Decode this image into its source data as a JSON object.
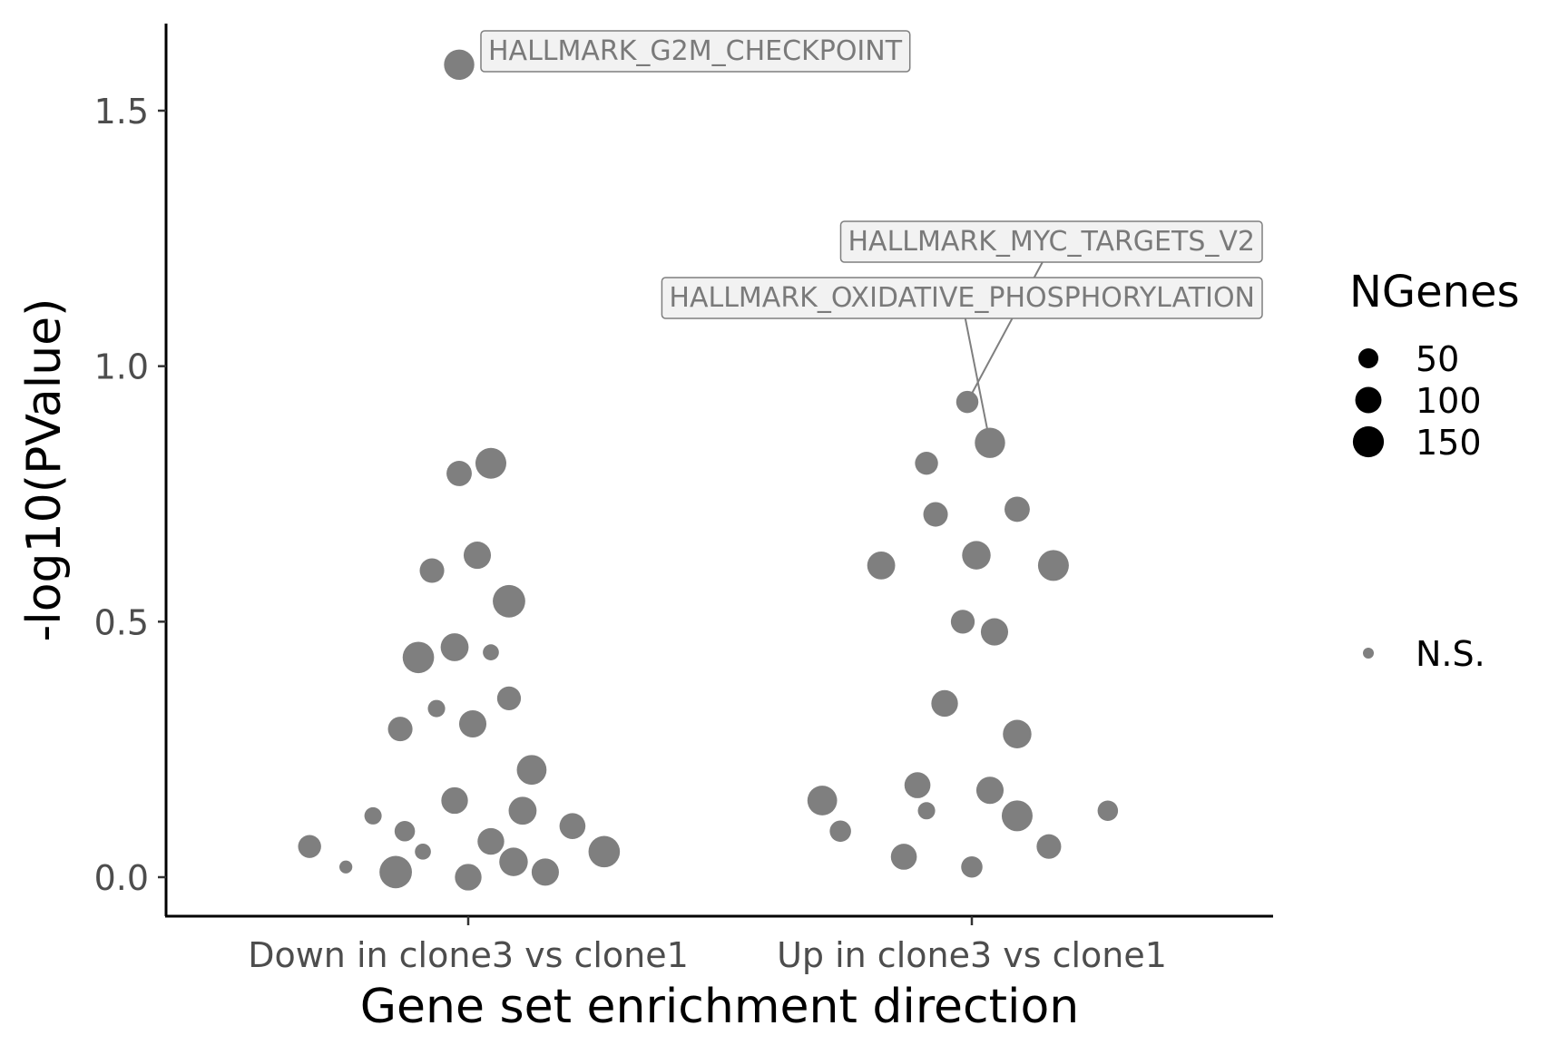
{
  "chart_data": {
    "type": "scatter",
    "xlabel": "Gene set enrichment direction",
    "ylabel": "-log10(PValue)",
    "categories": [
      "Down in clone3 vs clone1",
      "Up in clone3 vs clone1"
    ],
    "ylim": [
      -0.07,
      1.66
    ],
    "yticks": [
      "0.0",
      "0.5",
      "1.0",
      "1.5"
    ],
    "ytick_values": [
      0.0,
      0.5,
      1.0,
      1.5
    ],
    "grid": false,
    "point_color": "#7f7f7f",
    "series": [
      {
        "category": "Down in clone3 vs clone1",
        "points": [
          {
            "x": -0.02,
            "y": 1.59,
            "n": 110,
            "label": "HALLMARK_G2M_CHECKPOINT"
          },
          {
            "x": 0.05,
            "y": 0.81,
            "n": 115
          },
          {
            "x": -0.02,
            "y": 0.79,
            "n": 70
          },
          {
            "x": 0.02,
            "y": 0.63,
            "n": 85
          },
          {
            "x": -0.08,
            "y": 0.6,
            "n": 65
          },
          {
            "x": 0.09,
            "y": 0.54,
            "n": 130
          },
          {
            "x": -0.03,
            "y": 0.45,
            "n": 90
          },
          {
            "x": -0.11,
            "y": 0.43,
            "n": 120
          },
          {
            "x": 0.05,
            "y": 0.44,
            "n": 20
          },
          {
            "x": 0.09,
            "y": 0.35,
            "n": 60
          },
          {
            "x": -0.07,
            "y": 0.33,
            "n": 25
          },
          {
            "x": 0.01,
            "y": 0.3,
            "n": 85
          },
          {
            "x": -0.15,
            "y": 0.29,
            "n": 65
          },
          {
            "x": 0.14,
            "y": 0.21,
            "n": 105
          },
          {
            "x": -0.03,
            "y": 0.15,
            "n": 80
          },
          {
            "x": 0.12,
            "y": 0.13,
            "n": 90
          },
          {
            "x": -0.21,
            "y": 0.12,
            "n": 25
          },
          {
            "x": -0.14,
            "y": 0.09,
            "n": 40
          },
          {
            "x": 0.23,
            "y": 0.1,
            "n": 75
          },
          {
            "x": -0.35,
            "y": 0.06,
            "n": 55
          },
          {
            "x": -0.1,
            "y": 0.05,
            "n": 20
          },
          {
            "x": 0.05,
            "y": 0.07,
            "n": 80
          },
          {
            "x": 0.3,
            "y": 0.05,
            "n": 120
          },
          {
            "x": 0.1,
            "y": 0.03,
            "n": 95
          },
          {
            "x": -0.27,
            "y": 0.02,
            "n": 10
          },
          {
            "x": -0.16,
            "y": 0.01,
            "n": 130
          },
          {
            "x": 0.0,
            "y": 0.0,
            "n": 80
          },
          {
            "x": 0.17,
            "y": 0.01,
            "n": 85
          }
        ]
      },
      {
        "category": "Up in clone3 vs clone1",
        "points": [
          {
            "x": -0.01,
            "y": 0.93,
            "n": 50,
            "label": "HALLMARK_MYC_TARGETS_V2"
          },
          {
            "x": 0.04,
            "y": 0.85,
            "n": 110,
            "label": "HALLMARK_OXIDATIVE_PHOSPHORYLATION"
          },
          {
            "x": -0.1,
            "y": 0.81,
            "n": 55
          },
          {
            "x": 0.1,
            "y": 0.72,
            "n": 70
          },
          {
            "x": -0.08,
            "y": 0.71,
            "n": 65
          },
          {
            "x": 0.01,
            "y": 0.63,
            "n": 95
          },
          {
            "x": -0.2,
            "y": 0.61,
            "n": 90
          },
          {
            "x": 0.18,
            "y": 0.61,
            "n": 115
          },
          {
            "x": -0.02,
            "y": 0.5,
            "n": 60
          },
          {
            "x": 0.05,
            "y": 0.48,
            "n": 85
          },
          {
            "x": -0.06,
            "y": 0.34,
            "n": 80
          },
          {
            "x": 0.1,
            "y": 0.28,
            "n": 95
          },
          {
            "x": -0.12,
            "y": 0.18,
            "n": 75
          },
          {
            "x": 0.04,
            "y": 0.17,
            "n": 85
          },
          {
            "x": -0.33,
            "y": 0.15,
            "n": 105
          },
          {
            "x": -0.1,
            "y": 0.13,
            "n": 25
          },
          {
            "x": 0.3,
            "y": 0.13,
            "n": 40
          },
          {
            "x": 0.1,
            "y": 0.12,
            "n": 115
          },
          {
            "x": -0.29,
            "y": 0.09,
            "n": 45
          },
          {
            "x": -0.15,
            "y": 0.04,
            "n": 75
          },
          {
            "x": 0.17,
            "y": 0.06,
            "n": 65
          },
          {
            "x": 0.0,
            "y": 0.02,
            "n": 45
          }
        ]
      }
    ],
    "annotations": [
      {
        "text": "HALLMARK_G2M_CHECKPOINT"
      },
      {
        "text": "HALLMARK_MYC_TARGETS_V2"
      },
      {
        "text": "HALLMARK_OXIDATIVE_PHOSPHORYLATION"
      }
    ],
    "legend": {
      "title": "NGenes",
      "position": "right",
      "items": [
        {
          "label": "50",
          "n": 50
        },
        {
          "label": "100",
          "n": 100
        },
        {
          "label": "150",
          "n": 150
        }
      ],
      "ns_label": "N.S."
    }
  }
}
